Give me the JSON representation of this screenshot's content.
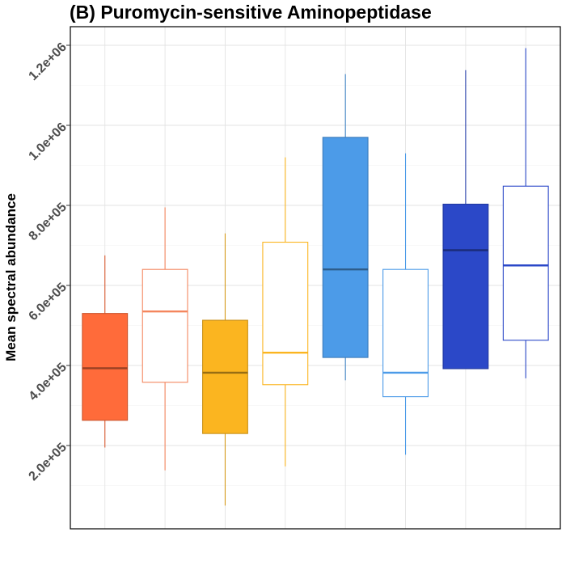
{
  "chart_data": {
    "type": "boxplot",
    "title": "(B) Puromycin-sensitive Aminopeptidase",
    "xlabel": "",
    "ylabel": "Mean spectral abundance",
    "ylim": [
      0,
      1200000
    ],
    "yticks": [
      200000,
      400000,
      600000,
      800000,
      1000000,
      1200000
    ],
    "ytick_labels": [
      "2.0e+05",
      "4.0e+05",
      "6.0e+05",
      "8.0e+05",
      "1.0e+06",
      "1.2e+06"
    ],
    "grid": true,
    "legend": "none",
    "boxes": [
      {
        "min": 195000,
        "q1": 263000,
        "median": 393000,
        "q3": 530000,
        "max": 675000,
        "color": "#FF6B3A",
        "filled": true
      },
      {
        "min": 138000,
        "q1": 358000,
        "median": 535000,
        "q3": 640000,
        "max": 795000,
        "color": "#F4865E",
        "filled": false
      },
      {
        "min": 50000,
        "q1": 230000,
        "median": 382000,
        "q3": 513000,
        "max": 730000,
        "color": "#FBB520",
        "filled": true
      },
      {
        "min": 148000,
        "q1": 352000,
        "median": 432000,
        "q3": 708000,
        "max": 920000,
        "color": "#FBB520",
        "filled": false
      },
      {
        "min": 363000,
        "q1": 420000,
        "median": 640000,
        "q3": 970000,
        "max": 1128000,
        "color": "#4C9BE8",
        "filled": true
      },
      {
        "min": 177000,
        "q1": 322000,
        "median": 382000,
        "q3": 640000,
        "max": 930000,
        "color": "#4C9BE8",
        "filled": false
      },
      {
        "min": null,
        "q1": 392000,
        "median": 688000,
        "q3": 803000,
        "max": 1138000,
        "color": "#2B48C8",
        "filled": true
      },
      {
        "min": 368000,
        "q1": 463000,
        "median": 650000,
        "q3": 848000,
        "max": 1193000,
        "color": "#2B48C8",
        "filled": false
      }
    ]
  }
}
